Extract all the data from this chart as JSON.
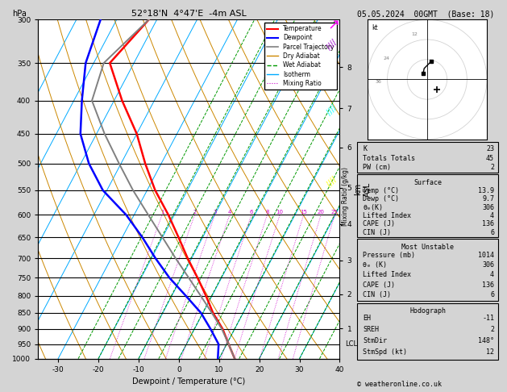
{
  "title_left": "52°18'N  4°47'E  -4m ASL",
  "title_right": "05.05.2024  00GMT  (Base: 18)",
  "xlabel": "Dewpoint / Temperature (°C)",
  "ylabel_left": "hPa",
  "pressure_levels": [
    300,
    350,
    400,
    450,
    500,
    550,
    600,
    650,
    700,
    750,
    800,
    850,
    900,
    950,
    1000
  ],
  "temp_color": "#ff0000",
  "dewp_color": "#0000ff",
  "parcel_color": "#808080",
  "dry_adiabat_color": "#cc8800",
  "wet_adiabat_color": "#009900",
  "isotherm_color": "#00aaff",
  "mixing_ratio_color": "#cc00cc",
  "xlim": [
    -35,
    40
  ],
  "km_ticks": [
    1,
    2,
    3,
    4,
    5,
    6,
    7,
    8
  ],
  "km_pressures": [
    898,
    795,
    705,
    620,
    545,
    472,
    411,
    355
  ],
  "mixing_ratio_labels": [
    1,
    2,
    3,
    4,
    6,
    8,
    10,
    15,
    20,
    25
  ],
  "lcl_pressure": 948,
  "temp_profile": {
    "pressure": [
      1000,
      950,
      900,
      850,
      800,
      750,
      700,
      650,
      600,
      550,
      500,
      450,
      400,
      350,
      300
    ],
    "temp": [
      13.9,
      10.5,
      7.0,
      2.5,
      -1.5,
      -6.0,
      -11.0,
      -16.0,
      -21.5,
      -28.0,
      -34.0,
      -40.0,
      -48.0,
      -56.0,
      -52.0
    ]
  },
  "dewp_profile": {
    "pressure": [
      1000,
      950,
      900,
      850,
      800,
      750,
      700,
      650,
      600,
      550,
      500,
      450,
      400,
      350,
      300
    ],
    "temp": [
      9.7,
      8.0,
      4.0,
      -0.5,
      -6.5,
      -13.0,
      -19.0,
      -25.0,
      -32.0,
      -41.0,
      -48.0,
      -54.0,
      -58.0,
      -62.0,
      -64.0
    ]
  },
  "parcel_profile": {
    "pressure": [
      1000,
      950,
      900,
      850,
      800,
      750,
      700,
      650,
      600,
      550,
      500,
      450,
      400,
      350,
      300
    ],
    "temp": [
      13.9,
      10.5,
      6.8,
      2.2,
      -2.8,
      -8.2,
      -14.0,
      -20.0,
      -26.5,
      -33.5,
      -40.5,
      -48.0,
      -55.5,
      -57.5,
      -52.0
    ]
  }
}
